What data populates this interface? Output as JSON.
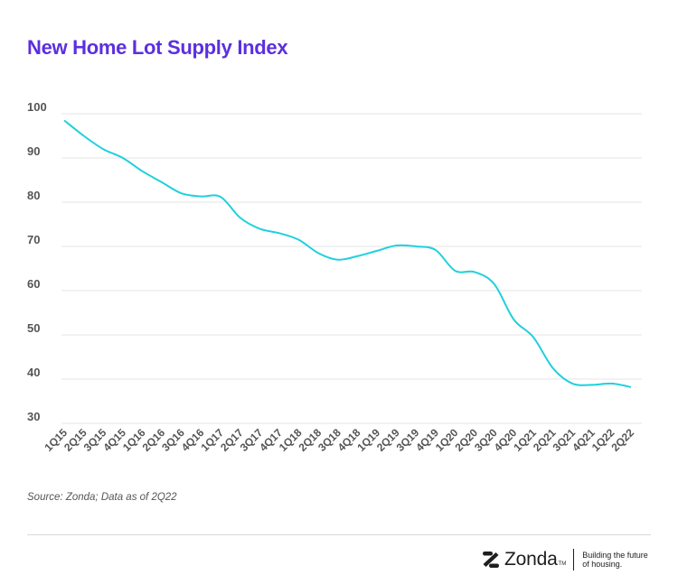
{
  "title": "New Home Lot Supply Index",
  "source": "Source: Zonda; Data as of 2Q22",
  "brand": {
    "name": "Zonda",
    "tm": "TM",
    "tagline": "Building the future of housing.",
    "icon": "zonda-z-icon"
  },
  "colors": {
    "title": "#5b2fe0",
    "line": "#1fd0de",
    "grid": "#e6e6e6",
    "tick": "#555555"
  },
  "chart_data": {
    "type": "line",
    "title": "New Home Lot Supply Index",
    "xlabel": "",
    "ylabel": "",
    "ylim": [
      30,
      100
    ],
    "yticks": [
      30,
      40,
      50,
      60,
      70,
      80,
      90,
      100
    ],
    "grid": true,
    "categories": [
      "1Q15",
      "2Q15",
      "3Q15",
      "4Q15",
      "1Q16",
      "2Q16",
      "3Q16",
      "4Q16",
      "1Q17",
      "2Q17",
      "3Q17",
      "4Q17",
      "1Q18",
      "2Q18",
      "3Q18",
      "4Q18",
      "1Q19",
      "2Q19",
      "3Q19",
      "4Q19",
      "1Q20",
      "2Q20",
      "3Q20",
      "4Q20",
      "1Q21",
      "2Q21",
      "3Q21",
      "4Q21",
      "1Q22",
      "2Q22"
    ],
    "series": [
      {
        "name": "New Home Lot Supply Index",
        "values": [
          98.5,
          95.0,
          92.0,
          90.0,
          87.0,
          84.5,
          82.0,
          81.3,
          81.2,
          76.5,
          74.0,
          73.0,
          71.5,
          68.5,
          67.0,
          67.8,
          69.0,
          70.2,
          70.0,
          69.2,
          64.5,
          64.2,
          61.5,
          53.5,
          49.5,
          42.5,
          39.0,
          38.7,
          39.0,
          38.2
        ]
      }
    ]
  }
}
